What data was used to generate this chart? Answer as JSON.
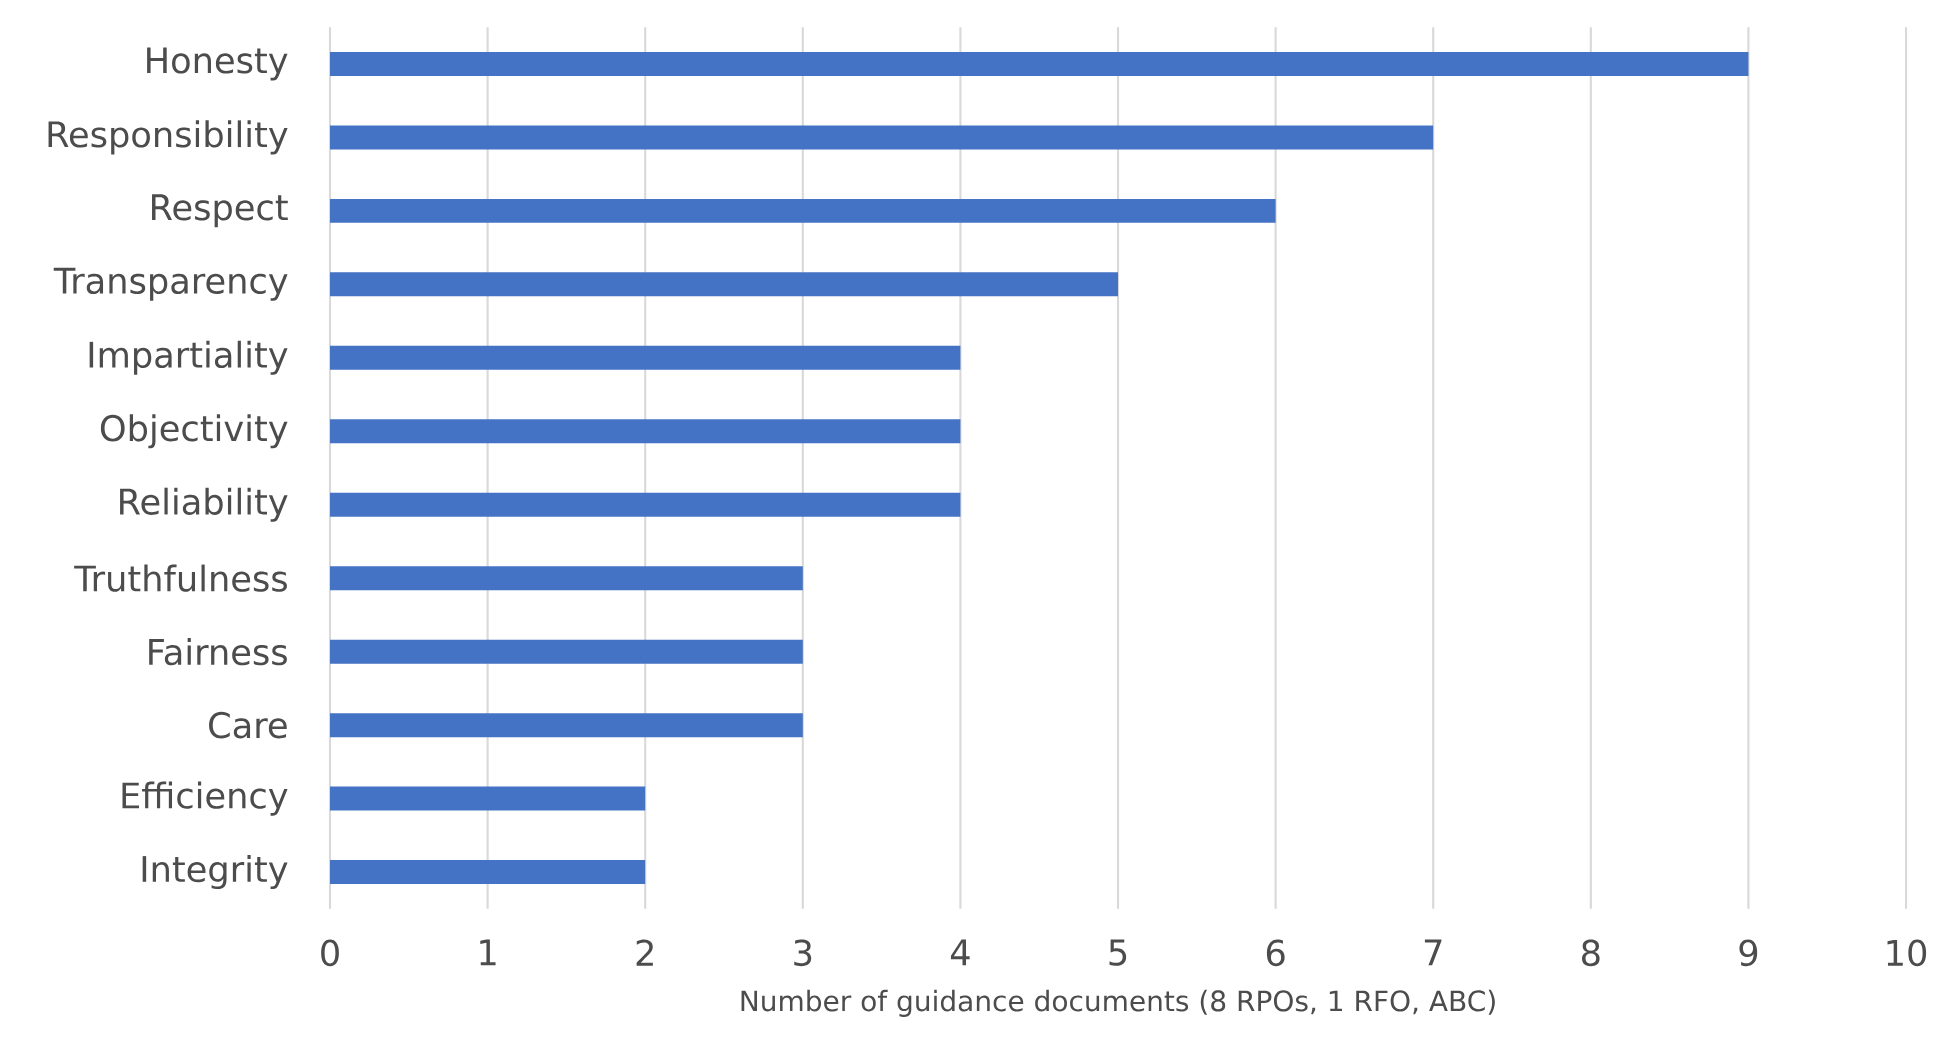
{
  "chart_data": {
    "type": "bar",
    "orientation": "horizontal",
    "xlabel": "Number of guidance documents (8 RPOs, 1 RFO, ABC)",
    "categories": [
      "Honesty",
      "Responsibility",
      "Respect",
      "Transparency",
      "Impartiality",
      "Objectivity",
      "Reliability",
      "Truthfulness",
      "Fairness",
      "Care",
      "Efficiency",
      "Integrity"
    ],
    "values": [
      9,
      7,
      6,
      5,
      4,
      4,
      4,
      3,
      3,
      3,
      2,
      2
    ],
    "color": "#4472c4",
    "xlim": [
      0,
      10
    ],
    "xticks": [
      0,
      1,
      2,
      3,
      4,
      5,
      6,
      7,
      8,
      9,
      10
    ],
    "grid": "x"
  }
}
